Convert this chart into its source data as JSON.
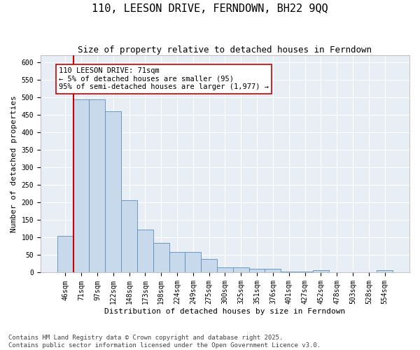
{
  "title": "110, LEESON DRIVE, FERNDOWN, BH22 9QQ",
  "subtitle": "Size of property relative to detached houses in Ferndown",
  "xlabel": "Distribution of detached houses by size in Ferndown",
  "ylabel": "Number of detached properties",
  "categories": [
    "46sqm",
    "71sqm",
    "97sqm",
    "122sqm",
    "148sqm",
    "173sqm",
    "198sqm",
    "224sqm",
    "249sqm",
    "275sqm",
    "300sqm",
    "325sqm",
    "351sqm",
    "376sqm",
    "401sqm",
    "427sqm",
    "452sqm",
    "478sqm",
    "503sqm",
    "528sqm",
    "554sqm"
  ],
  "values": [
    105,
    495,
    495,
    460,
    207,
    123,
    84,
    58,
    58,
    38,
    14,
    14,
    11,
    11,
    3,
    3,
    6,
    0,
    0,
    0,
    6
  ],
  "bar_color": "#c9d9ec",
  "bar_edge_color": "#5b8db8",
  "highlight_x": "71sqm",
  "highlight_line_color": "#cc0000",
  "annotation_text": "110 LEESON DRIVE: 71sqm\n← 5% of detached houses are smaller (95)\n95% of semi-detached houses are larger (1,977) →",
  "annotation_box_color": "#ffffff",
  "annotation_box_edge": "#cc0000",
  "ylim": [
    0,
    620
  ],
  "yticks": [
    0,
    50,
    100,
    150,
    200,
    250,
    300,
    350,
    400,
    450,
    500,
    550,
    600
  ],
  "background_color": "#e8eef5",
  "footer_line1": "Contains HM Land Registry data © Crown copyright and database right 2025.",
  "footer_line2": "Contains public sector information licensed under the Open Government Licence v3.0.",
  "title_fontsize": 11,
  "subtitle_fontsize": 9,
  "axis_label_fontsize": 8,
  "tick_fontsize": 7,
  "annotation_fontsize": 7.5,
  "footer_fontsize": 6.5
}
